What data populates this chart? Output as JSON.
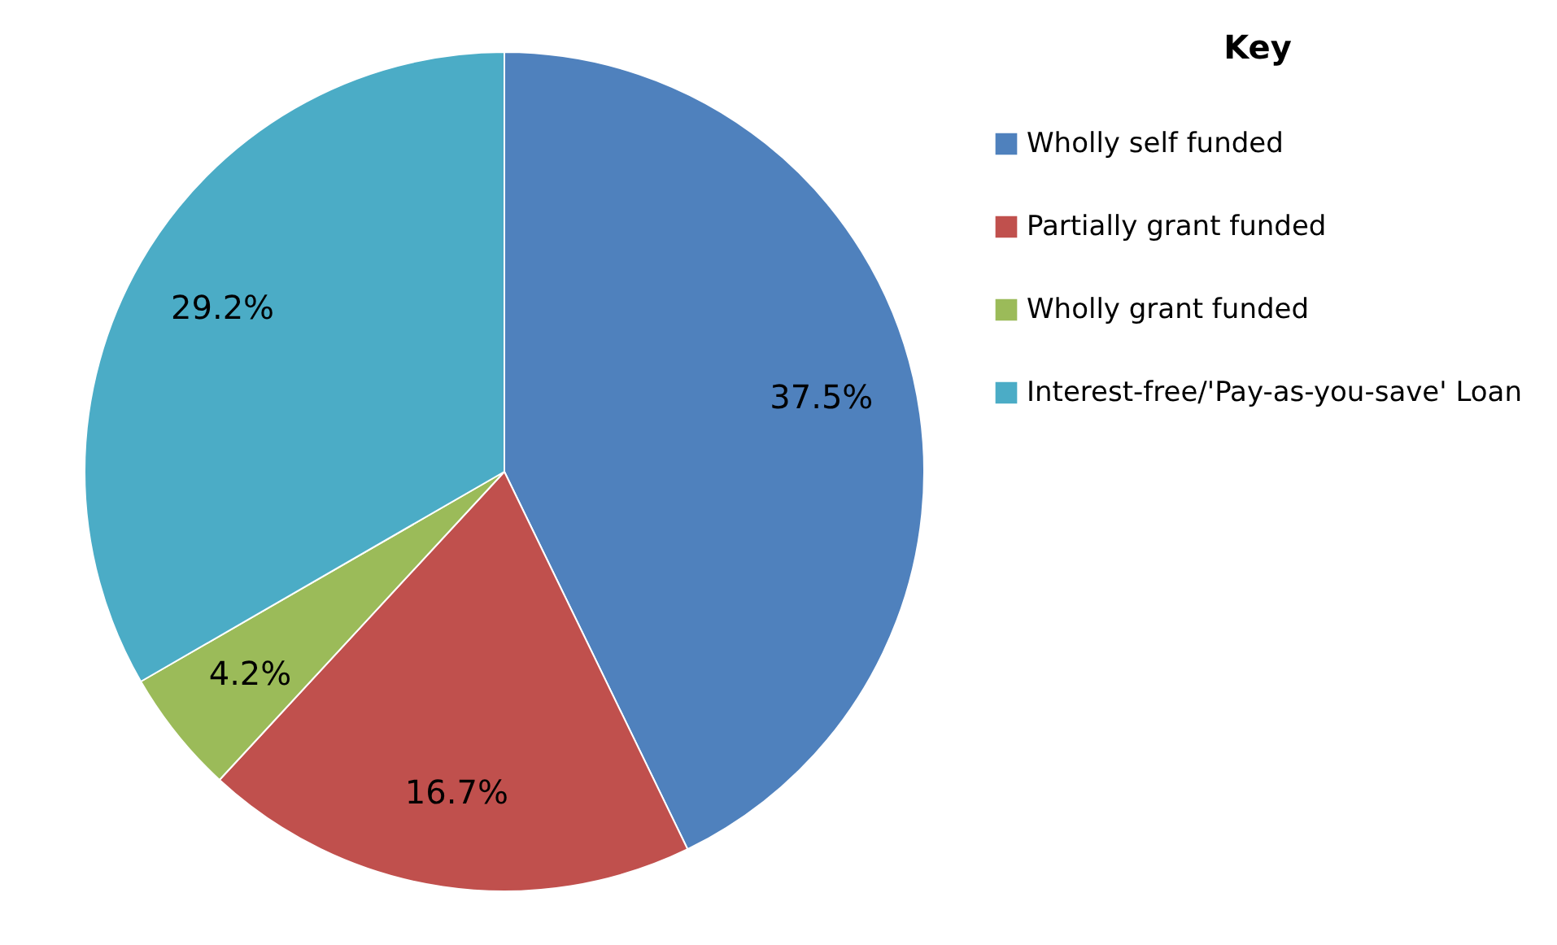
{
  "chart_data": {
    "type": "pie",
    "legend_title": "Key",
    "legend": "right",
    "categories": [
      "Wholly self funded",
      "Partially grant funded",
      "Wholly grant funded",
      "Interest-free/'Pay-as-you-save' Loan"
    ],
    "values": [
      37.5,
      16.7,
      4.2,
      29.2
    ],
    "colors": [
      "#4f81bd",
      "#c0504d",
      "#9bbb59",
      "#4bacc6"
    ],
    "value_labels": [
      "37.5%",
      "16.7%",
      "4.2%",
      "29.2%"
    ]
  }
}
